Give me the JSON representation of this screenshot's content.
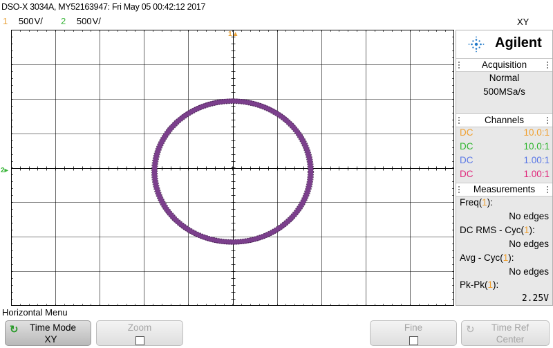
{
  "header": {
    "title": "DSO-X 3034A, MY52163947: Fri May 05 00:42:12 2017",
    "mode": "XY",
    "channels": [
      {
        "num": "1",
        "scale": "500 V/",
        "color": "#e8a23a"
      },
      {
        "num": "2",
        "scale": "500 V/",
        "color": "#3ab53a"
      }
    ]
  },
  "markers": {
    "ch1": "1",
    "ch2": "2"
  },
  "panel": {
    "brand": "Agilent",
    "acquisition": {
      "heading": "Acquisition",
      "mode": "Normal",
      "rate": "500MSa/s"
    },
    "channels": {
      "heading": "Channels",
      "rows": [
        {
          "coupling": "DC",
          "probe": "10.0:1",
          "color": "#f0a030"
        },
        {
          "coupling": "DC",
          "probe": "10.0:1",
          "color": "#2fb52f"
        },
        {
          "coupling": "DC",
          "probe": "1.00:1",
          "color": "#5a78e6"
        },
        {
          "coupling": "DC",
          "probe": "1.00:1",
          "color": "#e0287c"
        }
      ]
    },
    "measurements": {
      "heading": "Measurements",
      "items": [
        {
          "label": "Freq(",
          "ch": "1",
          "suffix": "):",
          "value": "No edges"
        },
        {
          "label": "DC RMS - Cyc(",
          "ch": "1",
          "suffix": "):",
          "value": "No edges"
        },
        {
          "label": "Avg - Cyc(",
          "ch": "1",
          "suffix": "):",
          "value": "No edges"
        },
        {
          "label": "Pk-Pk(",
          "ch": "1",
          "suffix": "):",
          "value": "2.25V"
        }
      ]
    }
  },
  "menu": {
    "title": "Horizontal Menu",
    "softkeys": [
      {
        "top": "Time Mode",
        "bottom": "XY"
      },
      {
        "top": "Zoom"
      },
      {
        "top": "Fine"
      },
      {
        "top": "Time Ref",
        "bottom": "Center"
      }
    ]
  },
  "trace": {
    "color": "#7b3f8c",
    "shape": "circle"
  }
}
